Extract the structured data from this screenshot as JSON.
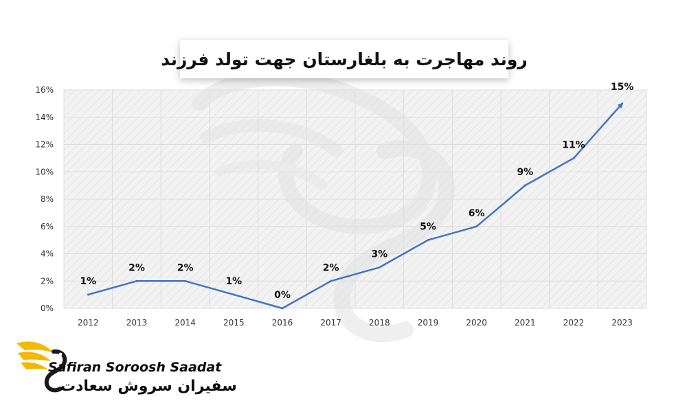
{
  "colors": {
    "line": "#4472c4",
    "grid": "#dcdcdc",
    "plot_bg": "#f2f2f2",
    "logo_accent": "#f5b800",
    "text": "#111111"
  },
  "chart_data": {
    "type": "line",
    "title": "روند مهاجرت به بلغارستان جهت تولد فرزند",
    "categories": [
      "2012",
      "2013",
      "2014",
      "2015",
      "2016",
      "2017",
      "2018",
      "2019",
      "2020",
      "2021",
      "2022",
      "2023"
    ],
    "values": [
      1,
      2,
      2,
      1,
      0,
      2,
      3,
      5,
      6,
      9,
      11,
      15
    ],
    "data_labels": [
      "1%",
      "2%",
      "2%",
      "1%",
      "0%",
      "2%",
      "3%",
      "5%",
      "6%",
      "9%",
      "11%",
      "15%"
    ],
    "y_ticks": [
      "0%",
      "2%",
      "4%",
      "6%",
      "8%",
      "10%",
      "12%",
      "14%",
      "16%"
    ],
    "ylim": [
      0,
      16
    ],
    "grid": true,
    "legend": "none",
    "last_point_arrow": true
  },
  "brand": {
    "name_en": "Safiran Soroosh Saadat",
    "name_fa": "سفیران سروش سعادت",
    "icon": "winged-s-logo"
  }
}
